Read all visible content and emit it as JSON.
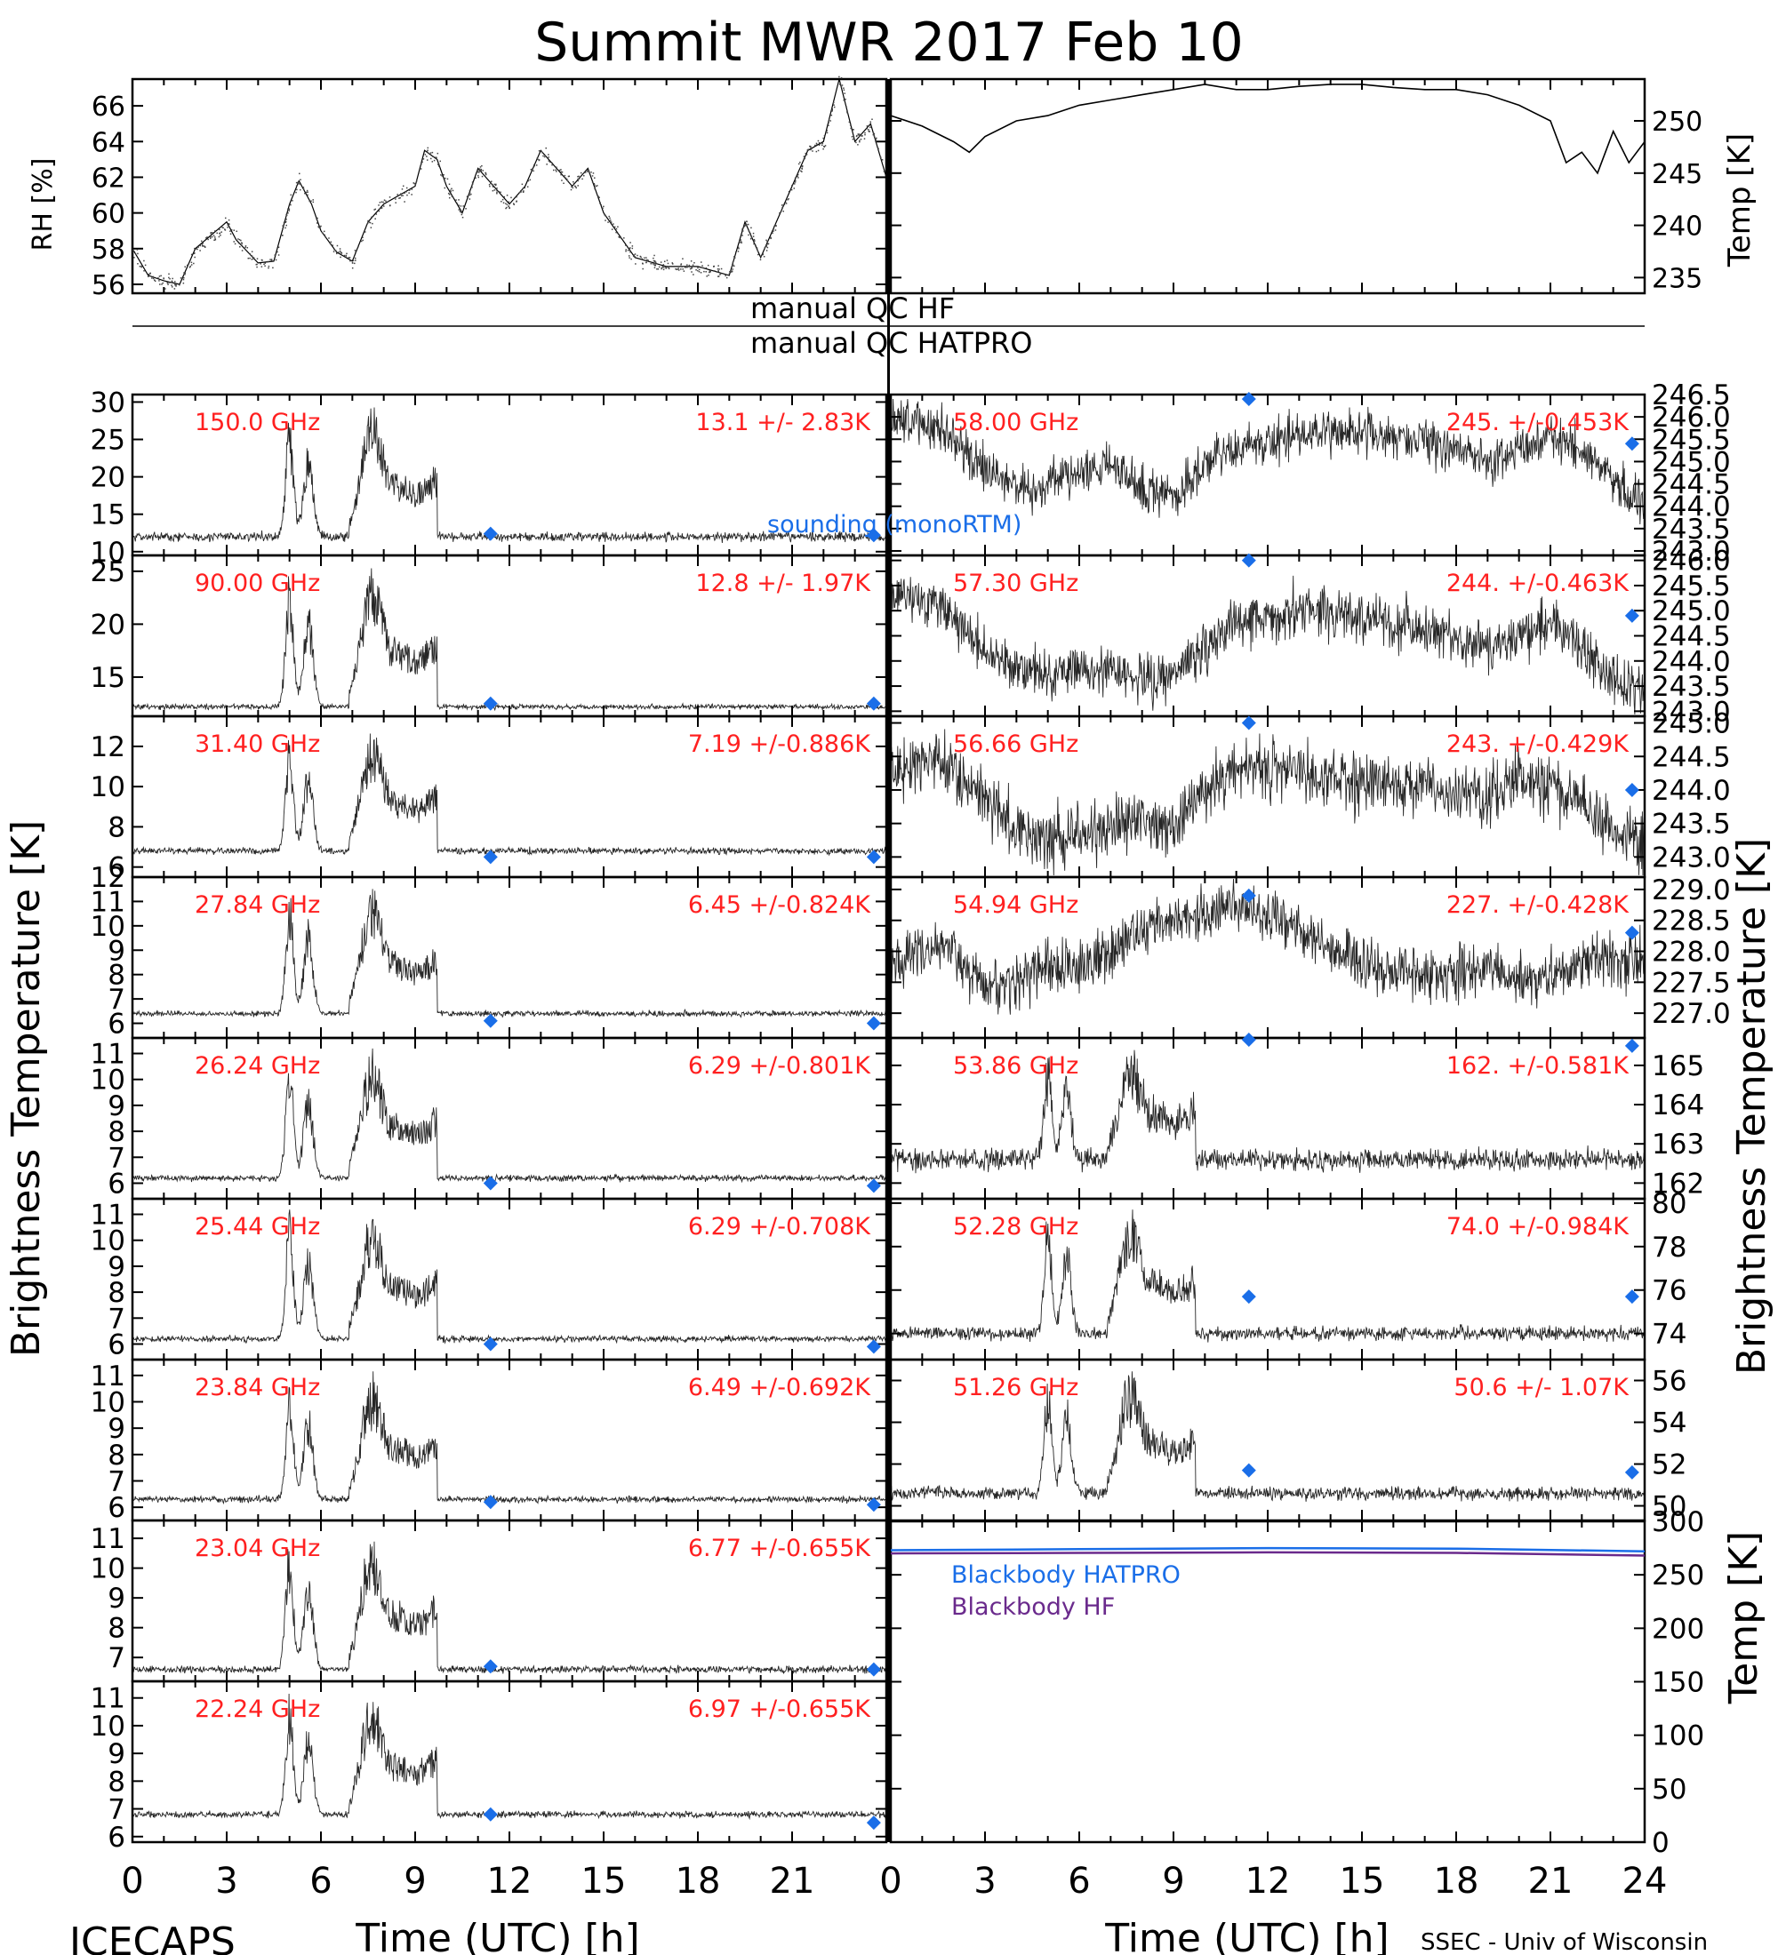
{
  "title": "Summit MWR 2017 Feb 10",
  "footer": {
    "left": "ICECAPS",
    "right": "SSEC - Univ of Wisconsin"
  },
  "axis_labels": {
    "time_left": "Time (UTC) [h]",
    "time_right": "Time (UTC) [h]",
    "bt_left": "Brightness Temperature [K]",
    "bt_right": "Brightness Temperature [K]",
    "rh": "RH [%]",
    "temp_top": "Temp [K]",
    "temp_bottom": "Temp [K]"
  },
  "qc": {
    "hf": "manual QC HF",
    "hatpro": "manual QC HATPRO"
  },
  "legends": {
    "sounding": "sounding (monoRTM)",
    "bb_hatpro": "Blackbody HATPRO",
    "bb_hf": "Blackbody HF"
  },
  "colors": {
    "channel_label": "#ff2020",
    "sounding": "#1a6ee8",
    "bb_hatpro": "#1a6ee8",
    "bb_hf": "#6a2a8c",
    "trace": "#000000"
  },
  "chart_data": [
    {
      "id": "rh",
      "type": "line",
      "ylabel": "RH [%]",
      "xlim": [
        0,
        24
      ],
      "ylim": [
        55.5,
        67.5
      ],
      "yticks": [
        56,
        58,
        60,
        62,
        64,
        66
      ],
      "x": [
        0,
        0.5,
        1,
        1.5,
        2,
        3,
        3.3,
        4,
        4.5,
        5,
        5.3,
        5.7,
        6,
        6.5,
        7,
        7.5,
        8,
        9,
        9.3,
        9.7,
        10,
        10.5,
        11,
        11.5,
        12,
        12.5,
        13,
        13.5,
        14,
        14.5,
        15,
        16,
        17,
        18,
        19,
        19.5,
        20,
        21,
        21.5,
        22,
        22.5,
        23,
        23.5,
        24
      ],
      "y": [
        58,
        56.5,
        56.2,
        56,
        58,
        59.5,
        58.5,
        57.2,
        57.3,
        60.5,
        61.8,
        60.5,
        59,
        57.8,
        57.3,
        59.5,
        60.5,
        61.5,
        63.5,
        63,
        61.5,
        60,
        62.5,
        61.5,
        60.5,
        61.5,
        63.5,
        62.5,
        61.5,
        62.5,
        60,
        57.5,
        57,
        57,
        56.5,
        59.5,
        57.5,
        61.5,
        63.5,
        64,
        67.5,
        64,
        65,
        62
      ]
    },
    {
      "id": "temp",
      "type": "line",
      "ylabel": "Temp [K]",
      "xlim": [
        0,
        24
      ],
      "ylim": [
        233.5,
        254
      ],
      "yticks": [
        235,
        240,
        245,
        250
      ],
      "x": [
        0,
        1,
        2,
        2.5,
        3,
        4,
        5,
        6,
        7,
        8,
        9,
        10,
        11,
        12,
        13,
        14,
        15,
        16,
        17,
        18,
        19,
        20,
        21,
        21.5,
        22,
        22.5,
        23,
        23.5,
        24
      ],
      "y": [
        250.5,
        249.5,
        248,
        247,
        248.5,
        250,
        250.5,
        251.5,
        252,
        252.5,
        253,
        253.5,
        253,
        253,
        253.3,
        253.5,
        253.5,
        253.2,
        253,
        253,
        252.5,
        251.5,
        250,
        246,
        247,
        245,
        249,
        246,
        248
      ]
    },
    {
      "id": "ch150.00",
      "type": "scatter",
      "panel": "L1",
      "freq_label": "150.0 GHz",
      "stats_label": "13.1 +/- 2.83K",
      "ylim": [
        9.5,
        31
      ],
      "yticks": [
        10,
        15,
        20,
        25,
        30
      ],
      "yticklabels": [
        "10",
        "15",
        "20",
        "25",
        "30"
      ],
      "base": 12,
      "noise": 0.8,
      "sig": 1.0,
      "sounding": [
        [
          11.4,
          12.4
        ],
        [
          23.6,
          12.2
        ]
      ]
    },
    {
      "id": "ch90.00",
      "type": "scatter",
      "panel": "L2",
      "freq_label": "90.00 GHz",
      "stats_label": "12.8 +/- 1.97K",
      "ylim": [
        11.3,
        26.5
      ],
      "yticks": [
        15,
        20,
        25
      ],
      "yticklabels": [
        "15",
        "20",
        "25"
      ],
      "base": 12.2,
      "noise": 0.3,
      "sig": 0.7,
      "sounding": [
        [
          11.4,
          12.5
        ],
        [
          23.6,
          12.5
        ]
      ]
    },
    {
      "id": "ch31.40",
      "type": "scatter",
      "panel": "L3",
      "freq_label": "31.40 GHz",
      "stats_label": "7.19 +/-0.886K",
      "ylim": [
        5.5,
        13.5
      ],
      "yticks": [
        6,
        8,
        10,
        12
      ],
      "yticklabels": [
        "6",
        "8",
        "10",
        "12"
      ],
      "base": 6.8,
      "noise": 0.2,
      "sig": 0.5,
      "sounding": [
        [
          11.4,
          6.5
        ],
        [
          23.6,
          6.5
        ]
      ]
    },
    {
      "id": "ch27.84",
      "type": "scatter",
      "panel": "L4",
      "freq_label": "27.84 GHz",
      "stats_label": "6.45 +/-0.824K",
      "ylim": [
        5.4,
        12
      ],
      "yticks": [
        6,
        7,
        8,
        9,
        10,
        11,
        12
      ],
      "yticklabels": [
        "6",
        "7",
        "8",
        "9",
        "10",
        "11",
        "12"
      ],
      "base": 6.4,
      "noise": 0.15,
      "sig": 0.55,
      "sounding": [
        [
          11.4,
          6.1
        ],
        [
          23.6,
          6.0
        ]
      ]
    },
    {
      "id": "ch26.24",
      "type": "scatter",
      "panel": "L5",
      "freq_label": "26.24 GHz",
      "stats_label": "6.29 +/-0.801K",
      "ylim": [
        5.4,
        11.6
      ],
      "yticks": [
        6,
        7,
        8,
        9,
        10,
        11
      ],
      "yticklabels": [
        "6",
        "7",
        "8",
        "9",
        "10",
        "11"
      ],
      "base": 6.2,
      "noise": 0.15,
      "sig": 0.55,
      "sounding": [
        [
          11.4,
          6.0
        ],
        [
          23.6,
          5.9
        ]
      ]
    },
    {
      "id": "ch25.44",
      "type": "scatter",
      "panel": "L6",
      "freq_label": "25.44 GHz",
      "stats_label": "6.29 +/-0.708K",
      "ylim": [
        5.4,
        11.6
      ],
      "yticks": [
        6,
        7,
        8,
        9,
        10,
        11
      ],
      "yticklabels": [
        "6",
        "7",
        "8",
        "9",
        "10",
        "11"
      ],
      "base": 6.2,
      "noise": 0.15,
      "sig": 0.5,
      "sounding": [
        [
          11.4,
          6.0
        ],
        [
          23.6,
          5.9
        ]
      ]
    },
    {
      "id": "ch23.84",
      "type": "scatter",
      "panel": "L7",
      "freq_label": "23.84 GHz",
      "stats_label": "6.49 +/-0.692K",
      "ylim": [
        5.5,
        11.6
      ],
      "yticks": [
        6,
        7,
        8,
        9,
        10,
        11
      ],
      "yticklabels": [
        "6",
        "7",
        "8",
        "9",
        "10",
        "11"
      ],
      "base": 6.3,
      "noise": 0.15,
      "sig": 0.5,
      "sounding": [
        [
          11.4,
          6.2
        ],
        [
          23.6,
          6.1
        ]
      ]
    },
    {
      "id": "ch23.04",
      "type": "scatter",
      "panel": "L8",
      "freq_label": "23.04 GHz",
      "stats_label": "6.77 +/-0.655K",
      "ylim": [
        6.2,
        11.6
      ],
      "yticks": [
        7,
        8,
        9,
        10,
        11
      ],
      "yticklabels": [
        "7",
        "8",
        "9",
        "10",
        "11"
      ],
      "base": 6.6,
      "noise": 0.15,
      "sig": 0.5,
      "sounding": [
        [
          11.4,
          6.7
        ],
        [
          23.6,
          6.6
        ]
      ]
    },
    {
      "id": "ch22.24",
      "type": "scatter",
      "panel": "L9",
      "freq_label": "22.24 GHz",
      "stats_label": "6.97 +/-0.655K",
      "ylim": [
        5.8,
        11.6
      ],
      "yticks": [
        6,
        7,
        8,
        9,
        10,
        11
      ],
      "yticklabels": [
        "6",
        "7",
        "8",
        "9",
        "10",
        "11"
      ],
      "base": 6.8,
      "noise": 0.15,
      "sig": 0.5,
      "sounding": [
        [
          11.4,
          6.8
        ],
        [
          23.6,
          6.5
        ]
      ]
    },
    {
      "id": "ch58.00",
      "type": "scatter",
      "panel": "R1",
      "freq_label": "58.00 GHz",
      "stats_label": "245. +/-0.453K",
      "ylim": [
        242.9,
        246.5
      ],
      "yticks": [
        243,
        243.5,
        244,
        244.5,
        245,
        245.5,
        246,
        246.5
      ],
      "yticklabels": [
        "243.0",
        "243.5",
        "244.0",
        "244.5",
        "245.0",
        "245.5",
        "246.0",
        "246.5"
      ],
      "noise": 0.45,
      "sounding": [
        [
          11.4,
          246.4
        ],
        [
          23.6,
          245.4
        ]
      ]
    },
    {
      "id": "ch57.30",
      "type": "scatter",
      "panel": "R2",
      "freq_label": "57.30 GHz",
      "stats_label": "244. +/-0.463K",
      "ylim": [
        242.9,
        246.1
      ],
      "yticks": [
        243,
        243.5,
        244,
        244.5,
        245,
        245.5,
        246
      ],
      "yticklabels": [
        "243.0",
        "243.5",
        "244.0",
        "244.5",
        "245.0",
        "245.5",
        "246.0"
      ],
      "noise": 0.45,
      "sounding": [
        [
          11.4,
          246.0
        ],
        [
          23.6,
          244.9
        ]
      ]
    },
    {
      "id": "ch56.66",
      "type": "scatter",
      "panel": "R3",
      "freq_label": "56.66 GHz",
      "stats_label": "243. +/-0.429K",
      "ylim": [
        242.7,
        245.1
      ],
      "yticks": [
        243,
        243.5,
        244,
        244.5,
        245
      ],
      "yticklabels": [
        "243.0",
        "243.5",
        "244.0",
        "244.5",
        "245.0"
      ],
      "noise": 0.4,
      "sounding": [
        [
          11.4,
          245.0
        ],
        [
          23.6,
          244.0
        ]
      ]
    },
    {
      "id": "ch54.94",
      "type": "scatter",
      "panel": "R4",
      "freq_label": "54.94 GHz",
      "stats_label": "227. +/-0.428K",
      "ylim": [
        226.6,
        229.2
      ],
      "yticks": [
        227,
        227.5,
        228,
        228.5,
        229
      ],
      "yticklabels": [
        "227.0",
        "227.5",
        "228.0",
        "228.5",
        "229.0"
      ],
      "noise": 0.4,
      "sounding": [
        [
          11.4,
          228.9
        ],
        [
          23.6,
          228.3
        ]
      ]
    },
    {
      "id": "ch53.86",
      "type": "scatter",
      "panel": "R5",
      "freq_label": "53.86 GHz",
      "stats_label": "162. +/-0.581K",
      "ylim": [
        161.6,
        165.7
      ],
      "yticks": [
        162,
        163,
        164,
        165
      ],
      "yticklabels": [
        "162",
        "163",
        "164",
        "165"
      ],
      "base": 162.6,
      "noise": 0.35,
      "sig": 0.9,
      "sounding": [
        [
          11.4,
          165.7
        ],
        [
          23.6,
          165.5
        ]
      ]
    },
    {
      "id": "ch52.28",
      "type": "scatter",
      "panel": "R6",
      "freq_label": "52.28 GHz",
      "stats_label": "74.0 +/-0.984K",
      "ylim": [
        72.8,
        80.2
      ],
      "yticks": [
        74,
        76,
        78,
        80
      ],
      "yticklabels": [
        "74",
        "76",
        "78",
        "80"
      ],
      "base": 74,
      "noise": 0.4,
      "sig": 1.0,
      "sounding": [
        [
          11.4,
          75.7
        ],
        [
          23.6,
          75.7
        ]
      ]
    },
    {
      "id": "ch51.26",
      "type": "scatter",
      "panel": "R7",
      "freq_label": "51.26 GHz",
      "stats_label": "50.6 +/- 1.07K",
      "ylim": [
        49.3,
        57
      ],
      "yticks": [
        50,
        52,
        54,
        56
      ],
      "yticklabels": [
        "50",
        "52",
        "54",
        "56"
      ],
      "base": 50.6,
      "noise": 0.4,
      "sig": 1.0,
      "sounding": [
        [
          11.4,
          51.7
        ],
        [
          23.6,
          51.6
        ]
      ]
    },
    {
      "id": "blackbody",
      "type": "line",
      "ylabel": "Temp [K]",
      "xlim": [
        0,
        24
      ],
      "ylim": [
        0,
        300
      ],
      "yticks": [
        0,
        50,
        100,
        150,
        200,
        250,
        300
      ],
      "series": [
        {
          "name": "Blackbody HATPRO",
          "x": [
            0,
            6,
            12,
            18,
            24
          ],
          "y": [
            273,
            274,
            275,
            274.5,
            272
          ]
        },
        {
          "name": "Blackbody HF",
          "x": [
            0,
            6,
            12,
            18,
            24
          ],
          "y": [
            270,
            270.5,
            271,
            270.5,
            268
          ]
        }
      ]
    }
  ]
}
